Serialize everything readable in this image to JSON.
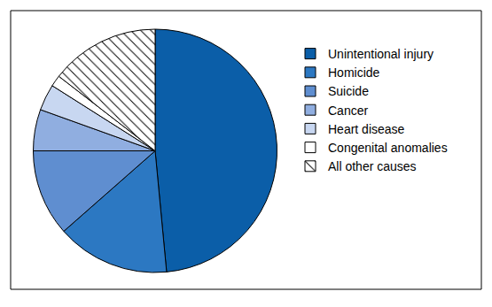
{
  "chart_data": {
    "type": "pie",
    "categories": [
      "Unintentional injury",
      "Homicide",
      "Suicide",
      "Cancer",
      "Heart disease",
      "Congenital anomalies",
      "All other causes"
    ],
    "values": [
      48.5,
      15,
      11.5,
      5.5,
      3.5,
      1.5,
      14.5
    ],
    "colors": [
      "#0b5ea8",
      "#2c78c2",
      "#5f8ed0",
      "#90aee0",
      "#c8d7f1",
      "#ffffff",
      "#ffffff"
    ],
    "legend": "right"
  }
}
